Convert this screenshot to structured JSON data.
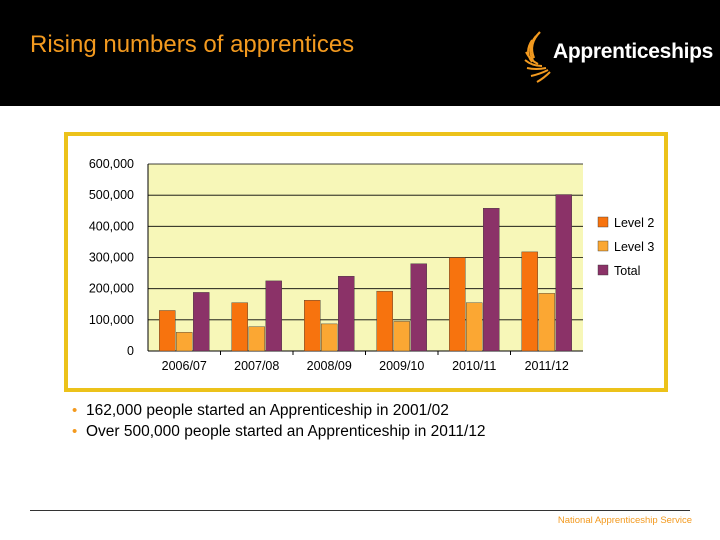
{
  "header": {
    "title": "Rising numbers of apprentices",
    "logo_text": "Apprenticeships"
  },
  "colors": {
    "accent": "#f39a1f",
    "plot_background": "#f7f7b8",
    "frame_border": "#ecc21a"
  },
  "chart_data": {
    "type": "bar",
    "categories": [
      "2006/07",
      "2007/08",
      "2008/09",
      "2009/10",
      "2010/11",
      "2011/12"
    ],
    "series": [
      {
        "name": "Level 2",
        "color": "#f7730e",
        "values": [
          130000,
          155000,
          163000,
          192000,
          300000,
          318000
        ]
      },
      {
        "name": "Level 3",
        "color": "#fba733",
        "values": [
          60000,
          78000,
          87000,
          95000,
          155000,
          185000
        ]
      },
      {
        "name": "Total",
        "color": "#8b3268",
        "values": [
          188000,
          225000,
          240000,
          280000,
          458000,
          502000
        ]
      }
    ],
    "yticks": [
      "0",
      "100,000",
      "200,000",
      "300,000",
      "400,000",
      "500,000",
      "600,000"
    ],
    "ylim": [
      0,
      600000
    ],
    "grid": true,
    "legend_position": "right"
  },
  "bullets": [
    "162,000 people started an Apprenticeship in 2001/02",
    "Over 500,000 people started an Apprenticeship in 2011/12"
  ],
  "footer": {
    "text": "National Apprenticeship Service"
  }
}
